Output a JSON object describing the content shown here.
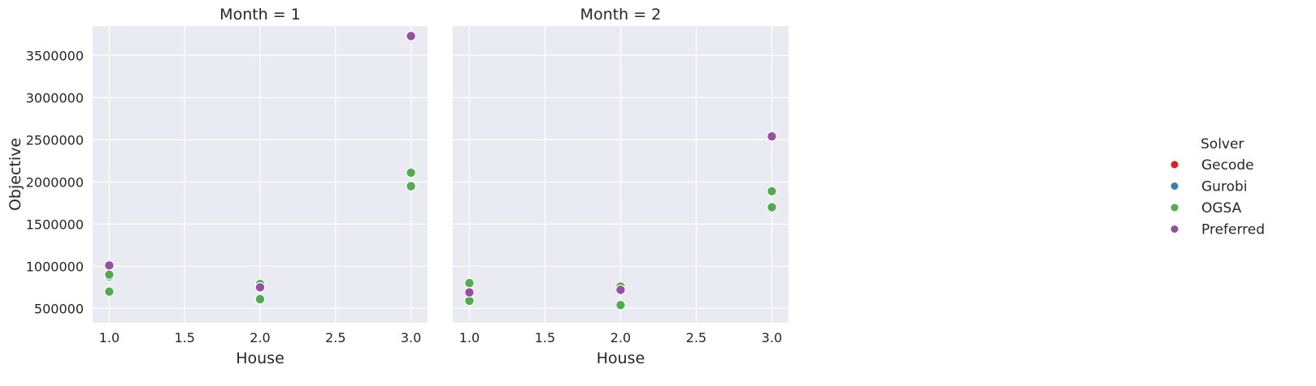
{
  "chart_data": {
    "type": "scatter",
    "ylabel": "Objective",
    "xlabel": "House",
    "xlim": [
      0.89,
      3.11
    ],
    "ylim": [
      330000,
      3850000
    ],
    "grid": true,
    "legend_placement": "right",
    "legend": {
      "title": "Solver",
      "entries": [
        {
          "name": "Gecode",
          "color": "#e41a1c"
        },
        {
          "name": "Gurobi",
          "color": "#377eb8"
        },
        {
          "name": "OGSA",
          "color": "#4daf4a"
        },
        {
          "name": "Preferred",
          "color": "#984ea3"
        }
      ]
    },
    "x_ticks": [
      "1.0",
      "1.5",
      "2.0",
      "2.5",
      "3.0"
    ],
    "x_tick_values": [
      1.0,
      1.5,
      2.0,
      2.5,
      3.0
    ],
    "y_ticks": [
      "500000",
      "1000000",
      "1500000",
      "2000000",
      "2500000",
      "3000000",
      "3500000"
    ],
    "y_tick_values": [
      500000,
      1000000,
      1500000,
      2000000,
      2500000,
      3000000,
      3500000
    ],
    "panels": [
      {
        "title": "Month = 1",
        "series": [
          {
            "name": "Gecode",
            "points": []
          },
          {
            "name": "Gurobi",
            "points": [
              [
                1,
                880000
              ],
              [
                2,
                780000
              ],
              [
                3,
                2110000
              ]
            ]
          },
          {
            "name": "OGSA",
            "points": [
              [
                1,
                700000
              ],
              [
                1,
                900000
              ],
              [
                2,
                610000
              ],
              [
                2,
                790000
              ],
              [
                3,
                1950000
              ],
              [
                3,
                2110000
              ]
            ]
          },
          {
            "name": "Preferred",
            "points": [
              [
                1,
                1010000
              ],
              [
                2,
                750000
              ],
              [
                3,
                3730000
              ]
            ]
          }
        ]
      },
      {
        "title": "Month = 2",
        "series": [
          {
            "name": "Gecode",
            "points": []
          },
          {
            "name": "Gurobi",
            "points": [
              [
                1,
                800000
              ],
              [
                2,
                760000
              ],
              [
                3,
                1890000
              ]
            ]
          },
          {
            "name": "OGSA",
            "points": [
              [
                1,
                590000
              ],
              [
                1,
                800000
              ],
              [
                2,
                540000
              ],
              [
                2,
                760000
              ],
              [
                3,
                1700000
              ],
              [
                3,
                1890000
              ]
            ]
          },
          {
            "name": "Preferred",
            "points": [
              [
                1,
                690000
              ],
              [
                2,
                720000
              ],
              [
                3,
                2540000
              ]
            ]
          }
        ]
      }
    ]
  }
}
